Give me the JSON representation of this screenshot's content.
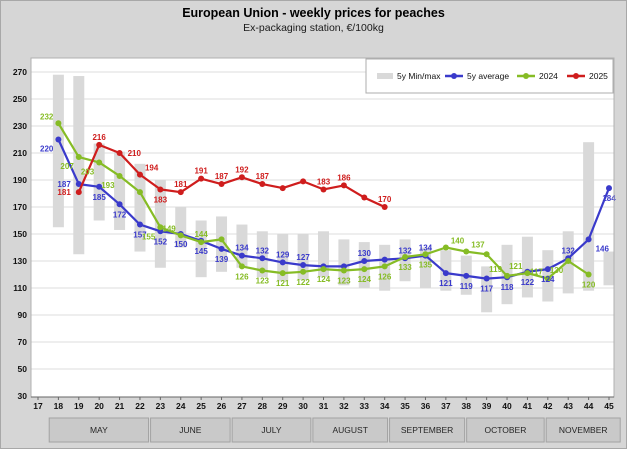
{
  "chart_data": {
    "type": "line",
    "title": "European Union - weekly prices for peaches",
    "subtitle": "Ex-packaging station, €/100kg",
    "unit": "€/100kg",
    "xlim": [
      17,
      45
    ],
    "ylim": [
      30,
      270
    ],
    "x_ticks": [
      17,
      18,
      19,
      20,
      21,
      22,
      23,
      24,
      25,
      26,
      27,
      28,
      29,
      30,
      31,
      32,
      33,
      34,
      35,
      36,
      37,
      38,
      39,
      40,
      41,
      42,
      43,
      44,
      45
    ],
    "y_ticks": [
      270,
      250,
      230,
      210,
      190,
      170,
      150,
      130,
      110,
      90,
      70,
      50,
      30
    ],
    "grid": true,
    "legend_position": "top-right",
    "legend": [
      {
        "label": "5y Min/max",
        "swatch": "bar",
        "color": "#d9d9d9"
      },
      {
        "label": "5y average",
        "swatch": "line",
        "color": "#3a3acb"
      },
      {
        "label": "2024",
        "swatch": "line",
        "color": "#86bc25"
      },
      {
        "label": "2025",
        "swatch": "line",
        "color": "#cf1d1d"
      }
    ],
    "point_format": [
      "week",
      "value",
      "label",
      "label_position"
    ],
    "minmax": {
      "name": "5y Min/max",
      "color": "#d9d9d9",
      "bars": [
        [
          18,
          155,
          268
        ],
        [
          19,
          135,
          267
        ],
        [
          20,
          160,
          217
        ],
        [
          21,
          153,
          211
        ],
        [
          22,
          137,
          202
        ],
        [
          23,
          125,
          190
        ],
        [
          24,
          140,
          170
        ],
        [
          25,
          118,
          160
        ],
        [
          26,
          122,
          163
        ],
        [
          27,
          125,
          157
        ],
        [
          28,
          118,
          152
        ],
        [
          29,
          115,
          150
        ],
        [
          30,
          116,
          150
        ],
        [
          31,
          118,
          152
        ],
        [
          32,
          112,
          146
        ],
        [
          33,
          110,
          144
        ],
        [
          34,
          108,
          142
        ],
        [
          35,
          115,
          146
        ],
        [
          36,
          110,
          140
        ],
        [
          37,
          108,
          138
        ],
        [
          38,
          105,
          134
        ],
        [
          39,
          92,
          126
        ],
        [
          40,
          98,
          142
        ],
        [
          41,
          103,
          148
        ],
        [
          42,
          100,
          138
        ],
        [
          43,
          106,
          152
        ],
        [
          44,
          108,
          218
        ],
        [
          45,
          112,
          137
        ]
      ]
    },
    "series": [
      {
        "name": "5y average",
        "color": "#3a3acb",
        "points": [
          [
            18,
            220,
            "220",
            "below-left"
          ],
          [
            19,
            187,
            "187",
            "left"
          ],
          [
            20,
            185,
            "185",
            "below"
          ],
          [
            21,
            172,
            "172",
            "below"
          ],
          [
            22,
            157,
            "157",
            "below"
          ],
          [
            23,
            152,
            "152",
            "below"
          ],
          [
            24,
            150,
            "150",
            "below"
          ],
          [
            25,
            145,
            "145",
            "below"
          ],
          [
            26,
            139,
            "139",
            "below"
          ],
          [
            27,
            134,
            "134",
            "above"
          ],
          [
            28,
            132,
            "132",
            "above"
          ],
          [
            29,
            129,
            "129",
            "above"
          ],
          [
            30,
            127,
            "127",
            "above"
          ],
          [
            31,
            126,
            null,
            null
          ],
          [
            32,
            126,
            null,
            null
          ],
          [
            33,
            130,
            "130",
            "above"
          ],
          [
            34,
            131,
            null,
            null
          ],
          [
            35,
            132,
            "132",
            "above"
          ],
          [
            36,
            134,
            "134",
            "above"
          ],
          [
            37,
            121,
            "121",
            "below"
          ],
          [
            38,
            119,
            "119",
            "below"
          ],
          [
            39,
            117,
            "117",
            "below"
          ],
          [
            40,
            118,
            "118",
            "below"
          ],
          [
            41,
            122,
            "122",
            "below"
          ],
          [
            42,
            124,
            "124",
            "below"
          ],
          [
            43,
            132,
            "132",
            "above"
          ],
          [
            44,
            146,
            "146",
            "below-right"
          ],
          [
            45,
            184,
            "184",
            "below"
          ]
        ]
      },
      {
        "name": "2024",
        "color": "#86bc25",
        "points": [
          [
            18,
            232,
            "232",
            "above-left"
          ],
          [
            19,
            207,
            "207",
            "below-left"
          ],
          [
            20,
            203,
            "203",
            "below-left"
          ],
          [
            21,
            193,
            "193",
            "below-left"
          ],
          [
            22,
            181,
            null,
            null
          ],
          [
            23,
            155,
            "155",
            "below-left"
          ],
          [
            24,
            149,
            "149",
            "above-left"
          ],
          [
            25,
            144,
            "144",
            "above"
          ],
          [
            26,
            146,
            null,
            null
          ],
          [
            27,
            126,
            "126",
            "below"
          ],
          [
            28,
            123,
            "123",
            "below"
          ],
          [
            29,
            121,
            "121",
            "below"
          ],
          [
            30,
            122,
            "122",
            "below"
          ],
          [
            31,
            124,
            "124",
            "below"
          ],
          [
            32,
            123,
            "123",
            "below"
          ],
          [
            33,
            124,
            "124",
            "below"
          ],
          [
            34,
            126,
            "126",
            "below"
          ],
          [
            35,
            133,
            "133",
            "below"
          ],
          [
            36,
            135,
            "135",
            "below"
          ],
          [
            37,
            140,
            "140",
            "above-right"
          ],
          [
            38,
            137,
            "137",
            "above-right"
          ],
          [
            39,
            135,
            null,
            null
          ],
          [
            40,
            119,
            "119",
            "above-left"
          ],
          [
            41,
            121,
            "121",
            "above-left"
          ],
          [
            42,
            117,
            "117",
            "above-left"
          ],
          [
            43,
            130,
            "130",
            "below-left"
          ],
          [
            44,
            120,
            "120",
            "below"
          ]
        ]
      },
      {
        "name": "2025",
        "color": "#cf1d1d",
        "points": [
          [
            19,
            181,
            "181",
            "left"
          ],
          [
            20,
            216,
            "216",
            "above"
          ],
          [
            21,
            210,
            "210",
            "right"
          ],
          [
            22,
            194,
            "194",
            "above-right"
          ],
          [
            23,
            183,
            "183",
            "below"
          ],
          [
            24,
            181,
            "181",
            "above"
          ],
          [
            25,
            191,
            "191",
            "above"
          ],
          [
            26,
            187,
            "187",
            "above"
          ],
          [
            27,
            192,
            "192",
            "above"
          ],
          [
            28,
            187,
            "187",
            "above"
          ],
          [
            29,
            184,
            null,
            null
          ],
          [
            30,
            189,
            null,
            null
          ],
          [
            31,
            183,
            "183",
            "above"
          ],
          [
            32,
            186,
            "186",
            "above"
          ],
          [
            33,
            177,
            null,
            null
          ],
          [
            34,
            170,
            "170",
            "above"
          ]
        ]
      }
    ],
    "months": [
      {
        "label": "MAY",
        "from": 17.55,
        "to": 22.42
      },
      {
        "label": "JUNE",
        "from": 22.52,
        "to": 26.42
      },
      {
        "label": "JULY",
        "from": 26.52,
        "to": 30.38
      },
      {
        "label": "AUGUST",
        "from": 30.48,
        "to": 34.14
      },
      {
        "label": "SEPTEMBER",
        "from": 34.24,
        "to": 37.92
      },
      {
        "label": "OCTOBER",
        "from": 38.02,
        "to": 41.82
      },
      {
        "label": "NOVEMBER",
        "from": 41.92,
        "to": 45.55
      }
    ]
  }
}
